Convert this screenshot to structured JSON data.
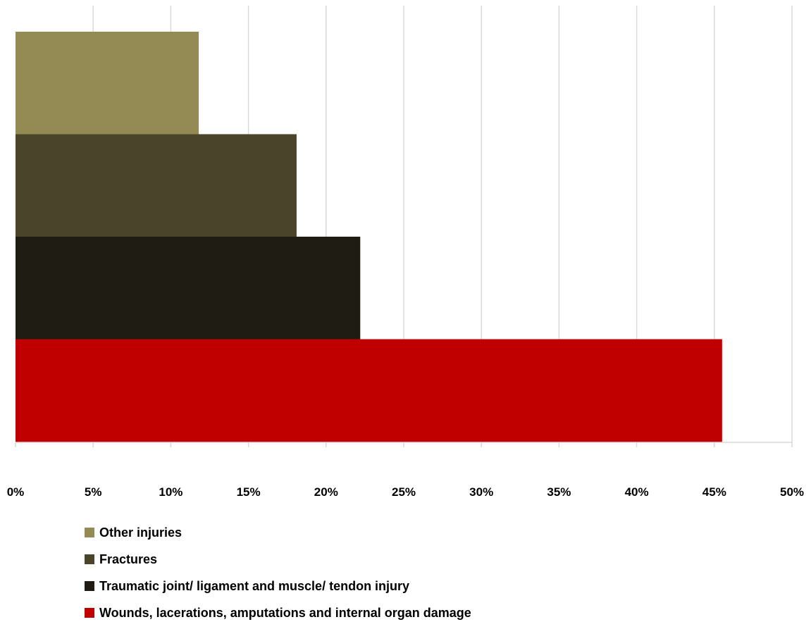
{
  "chart_data": {
    "type": "bar",
    "orientation": "horizontal",
    "stacked": false,
    "categories": [
      ""
    ],
    "series": [
      {
        "name": "Other injuries",
        "values": [
          11.8
        ],
        "color": "#948A54"
      },
      {
        "name": "Fractures",
        "values": [
          18.1
        ],
        "color": "#4A452A"
      },
      {
        "name": "Traumatic joint/ ligament and muscle/ tendon injury",
        "values": [
          22.2
        ],
        "color": "#1F1D13"
      },
      {
        "name": "Wounds, lacerations, amputations and internal organ damage",
        "values": [
          45.5
        ],
        "color": "#C00000"
      }
    ],
    "xlim": [
      0,
      50
    ],
    "xticks": [
      "0%",
      "5%",
      "10%",
      "15%",
      "20%",
      "25%",
      "30%",
      "35%",
      "40%",
      "45%",
      "50%"
    ],
    "grid": "vertical",
    "legend": "bottom",
    "title": "",
    "xlabel": "",
    "ylabel": ""
  }
}
